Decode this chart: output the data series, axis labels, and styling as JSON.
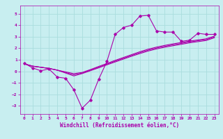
{
  "background_color": "#c8eef0",
  "grid_color": "#aadddd",
  "line_color": "#aa00aa",
  "marker_color": "#aa00aa",
  "xlabel": "Windchill (Refroidissement éolien,°C)",
  "xlim": [
    -0.5,
    23.5
  ],
  "ylim": [
    -3.7,
    5.7
  ],
  "yticks": [
    -3,
    -2,
    -1,
    0,
    1,
    2,
    3,
    4,
    5
  ],
  "xticks": [
    0,
    1,
    2,
    3,
    4,
    5,
    6,
    7,
    8,
    9,
    10,
    11,
    12,
    13,
    14,
    15,
    16,
    17,
    18,
    19,
    20,
    21,
    22,
    23
  ],
  "series1_x": [
    0,
    1,
    2,
    3,
    4,
    5,
    6,
    7,
    8,
    9,
    10,
    11,
    12,
    13,
    14,
    15,
    16,
    17,
    18,
    19,
    20,
    21,
    22,
    23
  ],
  "series1_y": [
    0.7,
    0.3,
    0.05,
    0.2,
    -0.5,
    -0.6,
    -1.6,
    -3.2,
    -2.5,
    -0.7,
    0.85,
    3.2,
    3.8,
    4.0,
    4.8,
    4.85,
    3.5,
    3.4,
    3.4,
    2.6,
    2.7,
    3.3,
    3.2,
    3.2
  ],
  "series2_x": [
    0,
    1,
    2,
    3,
    4,
    5,
    6,
    7,
    8,
    9,
    10,
    11,
    12,
    13,
    14,
    15,
    16,
    17,
    18,
    19,
    20,
    21,
    22,
    23
  ],
  "series2_y": [
    0.65,
    0.45,
    0.35,
    0.25,
    0.1,
    -0.05,
    -0.2,
    -0.1,
    0.15,
    0.42,
    0.68,
    0.95,
    1.2,
    1.45,
    1.7,
    1.92,
    2.1,
    2.25,
    2.38,
    2.5,
    2.62,
    2.72,
    2.82,
    3.05
  ],
  "series3_x": [
    0,
    1,
    2,
    3,
    4,
    5,
    6,
    7,
    8,
    9,
    10,
    11,
    12,
    13,
    14,
    15,
    16,
    17,
    18,
    19,
    20,
    21,
    22,
    23
  ],
  "series3_y": [
    0.65,
    0.45,
    0.35,
    0.25,
    0.1,
    -0.1,
    -0.3,
    -0.15,
    0.1,
    0.36,
    0.62,
    0.88,
    1.13,
    1.38,
    1.62,
    1.84,
    2.02,
    2.17,
    2.3,
    2.42,
    2.55,
    2.65,
    2.75,
    2.98
  ],
  "series4_x": [
    0,
    1,
    2,
    3,
    4,
    5,
    6,
    7,
    8,
    9,
    10,
    11,
    12,
    13,
    14,
    15,
    16,
    17,
    18,
    19,
    20,
    21,
    22,
    23
  ],
  "series4_y": [
    0.65,
    0.45,
    0.35,
    0.25,
    0.1,
    -0.15,
    -0.4,
    -0.2,
    0.05,
    0.3,
    0.56,
    0.81,
    1.06,
    1.31,
    1.54,
    1.76,
    1.94,
    2.09,
    2.22,
    2.34,
    2.47,
    2.57,
    2.67,
    2.91
  ],
  "xlabel_fontsize": 5.5,
  "tick_fontsize": 4.5,
  "linewidth": 0.8,
  "markersize": 1.8
}
